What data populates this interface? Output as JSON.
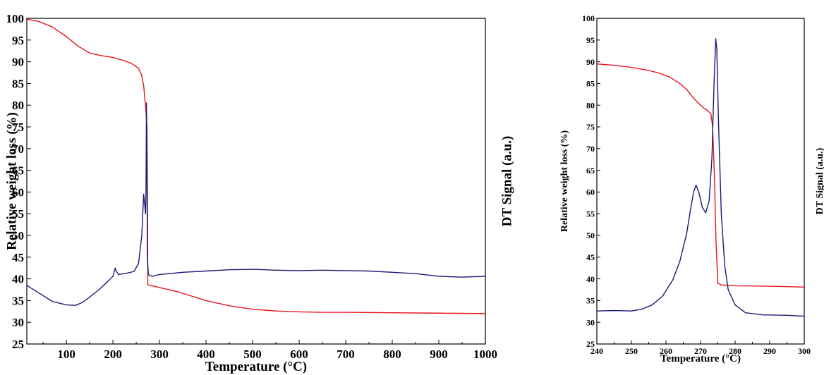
{
  "chart_data": [
    {
      "type": "line",
      "xlabel": "Temperature (°C)",
      "ylabel": "Relative weight loss (%)",
      "y2label": "DT Signal (a.u.)",
      "xlim": [
        15,
        1000
      ],
      "ylim": [
        25,
        100
      ],
      "xticks": [
        100,
        200,
        300,
        400,
        500,
        600,
        700,
        800,
        900,
        1000
      ],
      "xtick_labels": [
        "100",
        "200",
        "300",
        "400",
        "500",
        "600",
        "700",
        "800",
        "900",
        "1000"
      ],
      "yticks": [
        25,
        30,
        35,
        40,
        45,
        50,
        55,
        60,
        65,
        70,
        75,
        80,
        85,
        90,
        95,
        100
      ],
      "ytick_labels": [
        "25",
        "30",
        "35",
        "40",
        "45",
        "50",
        "55",
        "60",
        "65",
        "70",
        "75",
        "80",
        "85",
        "90",
        "95",
        "100"
      ],
      "grid": false,
      "legend": "none",
      "colors": {
        "tg": "#e8141c",
        "dt": "#1a1a78"
      },
      "series": [
        {
          "key": "tg",
          "x": [
            15,
            40,
            70,
            100,
            125,
            150,
            175,
            200,
            220,
            240,
            255,
            262,
            266,
            269,
            271,
            273,
            274,
            275,
            280,
            300,
            340,
            400,
            450,
            500,
            550,
            600,
            650,
            700,
            800,
            900,
            1000
          ],
          "y": [
            99.8,
            99.3,
            98.0,
            95.8,
            93.6,
            92.0,
            91.4,
            91.0,
            90.4,
            89.6,
            88.5,
            86.8,
            84.5,
            81.0,
            78.5,
            75.0,
            60.0,
            38.6,
            38.5,
            38.0,
            37.0,
            35.0,
            33.8,
            33.0,
            32.6,
            32.4,
            32.3,
            32.3,
            32.2,
            32.1,
            32.0
          ]
        },
        {
          "key": "dt",
          "x": [
            15,
            40,
            70,
            100,
            120,
            135,
            150,
            170,
            190,
            200,
            205,
            207,
            212,
            230,
            245,
            255,
            262,
            266,
            268,
            270,
            271,
            272,
            273,
            274,
            276,
            278,
            285,
            300,
            350,
            400,
            450,
            500,
            550,
            600,
            650,
            700,
            750,
            800,
            850,
            900,
            950,
            1000
          ],
          "y": [
            38.5,
            36.8,
            34.8,
            34.0,
            33.9,
            34.6,
            35.8,
            37.5,
            39.5,
            40.6,
            42.5,
            41.8,
            41.0,
            41.3,
            41.7,
            43.5,
            50.0,
            59.5,
            57.5,
            55.0,
            60.0,
            80.5,
            70.0,
            45.0,
            41.2,
            40.8,
            40.6,
            41.0,
            41.5,
            41.8,
            42.1,
            42.2,
            42.0,
            41.9,
            42.0,
            41.9,
            41.8,
            41.5,
            41.2,
            40.6,
            40.4,
            40.6
          ]
        }
      ]
    },
    {
      "type": "line",
      "xlabel": "Temperature (°C)",
      "ylabel": "Relative weight loss (%)",
      "y2label": "DT Signal (a.u.)",
      "xlim": [
        240,
        300
      ],
      "ylim": [
        25,
        100
      ],
      "xticks": [
        240,
        250,
        260,
        270,
        280,
        290,
        300
      ],
      "xtick_labels": [
        "240",
        "250",
        "260",
        "270",
        "280",
        "290",
        "300"
      ],
      "yticks": [
        25,
        30,
        35,
        40,
        45,
        50,
        55,
        60,
        65,
        70,
        75,
        80,
        85,
        90,
        95,
        100
      ],
      "ytick_labels": [
        "25",
        "30",
        "35",
        "40",
        "45",
        "50",
        "55",
        "60",
        "65",
        "70",
        "75",
        "80",
        "85",
        "90",
        "95",
        "100"
      ],
      "grid": false,
      "legend": "none",
      "colors": {
        "tg": "#e8141c",
        "dt": "#1a1a78"
      },
      "series": [
        {
          "key": "tg",
          "x": [
            240,
            245,
            250,
            255,
            258,
            261,
            264,
            266,
            268,
            269,
            270,
            271,
            272,
            273,
            273.5,
            274,
            274.5,
            275,
            276,
            280,
            290,
            300
          ],
          "y": [
            89.5,
            89.2,
            88.7,
            88.0,
            87.4,
            86.5,
            85.0,
            83.6,
            81.6,
            80.8,
            80.0,
            79.3,
            78.8,
            78.0,
            75.0,
            64.0,
            48.0,
            39.0,
            38.6,
            38.4,
            38.3,
            38.1
          ]
        },
        {
          "key": "dt",
          "x": [
            240,
            245,
            250,
            253,
            256,
            259,
            262,
            264,
            266,
            267,
            268,
            268.7,
            269.5,
            270.5,
            271.5,
            272.5,
            273.3,
            273.9,
            274.4,
            274.7,
            275.2,
            276,
            277,
            278,
            280,
            283,
            288,
            295,
            300
          ],
          "y": [
            32.6,
            32.7,
            32.6,
            33.0,
            34.0,
            36.0,
            39.8,
            44.0,
            50.5,
            55.5,
            60.0,
            61.6,
            60.0,
            56.5,
            55.2,
            58.0,
            68.0,
            85.0,
            95.3,
            93.0,
            76.0,
            55.0,
            43.0,
            37.5,
            34.0,
            32.2,
            31.7,
            31.6,
            31.4
          ]
        }
      ]
    }
  ]
}
